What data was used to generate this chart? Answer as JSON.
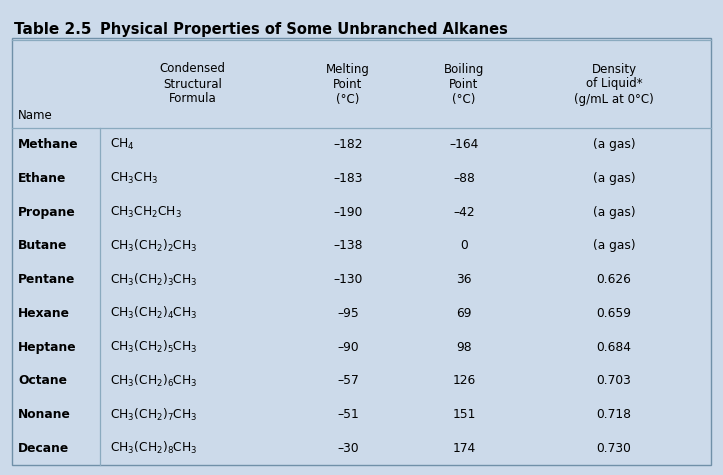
{
  "title_bold": "Table 2.5",
  "title_rest": "Physical Properties of Some Unbranched Alkanes",
  "bg_color": "#ccdaea",
  "header_cols": [
    "Name",
    "Condensed\nStructural\nFormula",
    "Melting\nPoint\n(°C)",
    "Boiling\nPoint\n(°C)",
    "Density\nof Liquid*\n(g/mL at 0°C)"
  ],
  "formulas_display": [
    [
      "CH",
      "4",
      ""
    ],
    [
      "CH",
      "3",
      "CH",
      "3",
      ""
    ],
    [
      "CH",
      "3",
      "CH",
      "2",
      "CH",
      "3",
      ""
    ],
    [
      "CH",
      "3",
      "(CH",
      "2",
      ")",
      "2",
      "CH",
      "3",
      ""
    ],
    [
      "CH",
      "3",
      "(CH",
      "2",
      ")",
      "3",
      "CH",
      "3",
      ""
    ],
    [
      "CH",
      "3",
      "(CH",
      "2",
      ")",
      "4",
      "CH",
      "3",
      ""
    ],
    [
      "CH",
      "3",
      "(CH",
      "2",
      ")",
      "5",
      "CH",
      "3",
      ""
    ],
    [
      "CH",
      "3",
      "(CH",
      "2",
      ")",
      "6",
      "CH",
      "3",
      ""
    ],
    [
      "CH",
      "3",
      "(CH",
      "2",
      ")",
      "7",
      "CH",
      "3",
      ""
    ],
    [
      "CH",
      "3",
      "(CH",
      "2",
      ")",
      "8",
      "CH",
      "3",
      ""
    ]
  ],
  "formulas_text": [
    "CH$_4$",
    "CH$_3$CH$_3$",
    "CH$_3$CH$_2$CH$_3$",
    "CH$_3$(CH$_2$)$_2$CH$_3$",
    "CH$_3$(CH$_2$)$_3$CH$_3$",
    "CH$_3$(CH$_2$)$_4$CH$_3$",
    "CH$_3$(CH$_2$)$_5$CH$_3$",
    "CH$_3$(CH$_2$)$_6$CH$_3$",
    "CH$_3$(CH$_2$)$_7$CH$_3$",
    "CH$_3$(CH$_2$)$_8$CH$_3$"
  ],
  "rows": [
    [
      "Methane",
      "–182",
      "–164",
      "(a gas)"
    ],
    [
      "Ethane",
      "–183",
      "–88",
      "(a gas)"
    ],
    [
      "Propane",
      "–190",
      "–42",
      "(a gas)"
    ],
    [
      "Butane",
      "–138",
      "0",
      "(a gas)"
    ],
    [
      "Pentane",
      "–130",
      "36",
      "0.626"
    ],
    [
      "Hexane",
      "–95",
      "69",
      "0.659"
    ],
    [
      "Heptane",
      "–90",
      "98",
      "0.684"
    ],
    [
      "Octane",
      "–57",
      "126",
      "0.703"
    ],
    [
      "Nonane",
      "–51",
      "151",
      "0.718"
    ],
    [
      "Decane",
      "–30",
      "174",
      "0.730"
    ]
  ],
  "line_color": "#8aaabf",
  "border_color": "#7090a8",
  "title_table_bold_size": 11,
  "title_rest_size": 10.5,
  "header_fontsize": 8.5,
  "data_fontsize": 8.8,
  "fig_width": 7.23,
  "fig_height": 4.75,
  "fig_dpi": 100
}
